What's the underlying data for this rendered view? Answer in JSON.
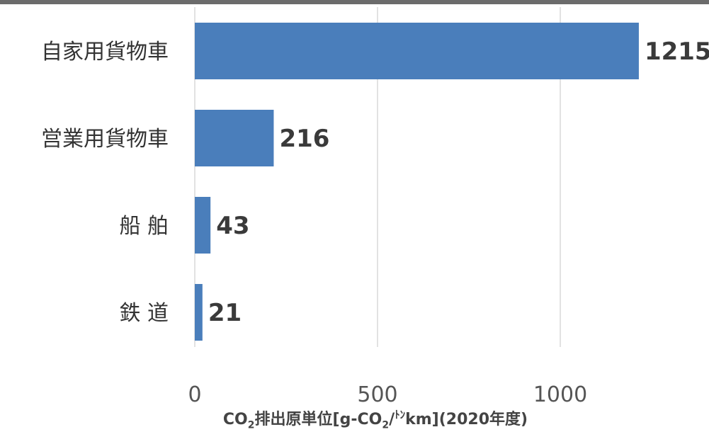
{
  "chart_data": {
    "type": "bar",
    "orientation": "horizontal",
    "categories": [
      "自家用貨物車",
      "営業用貨物車",
      "船 舶",
      "鉄 道"
    ],
    "values": [
      1215,
      216,
      43,
      21
    ],
    "data_labels": [
      "1215",
      "216",
      "43",
      "21"
    ],
    "xlabel": {
      "prefix": "CO",
      "subscript": "2",
      "middle": "排出原単位[g-CO",
      "subscript2": "2",
      "slash": "/",
      "small_kana": "ﾄﾝ",
      "suffix": "km](2020年度)"
    },
    "ylabel": "",
    "xlim": [
      0,
      1300
    ],
    "xticks": [
      0,
      500,
      1000
    ],
    "xtick_labels": [
      "0",
      "500",
      "1000"
    ],
    "grid": true,
    "legend": "none",
    "bar_color": "#4a7ebb"
  }
}
